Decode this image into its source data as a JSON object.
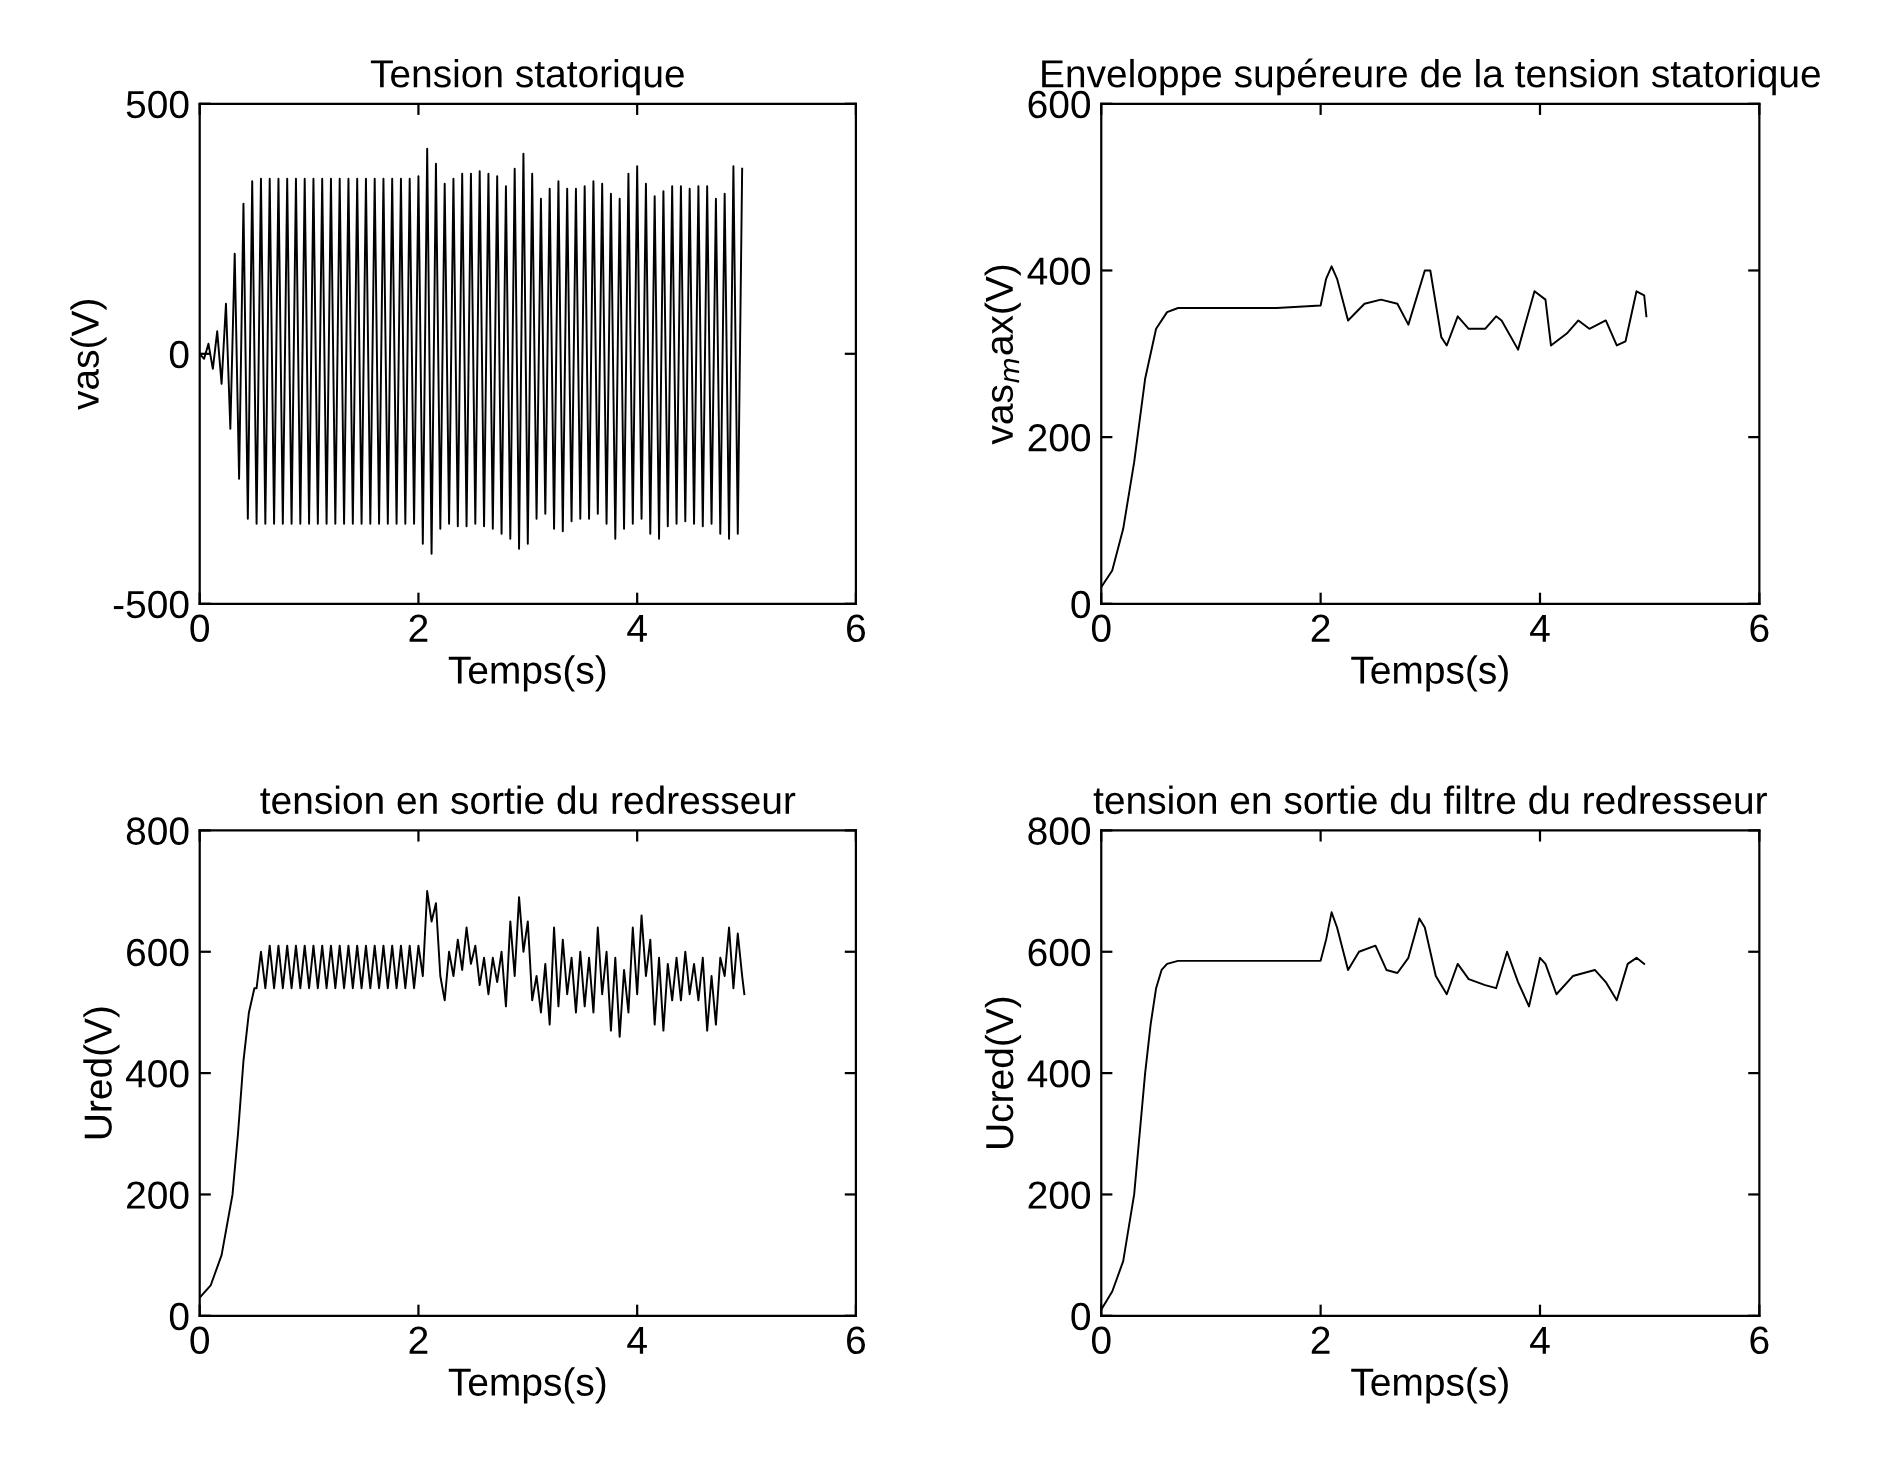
{
  "chart_data": [
    {
      "type": "line",
      "title": "Tension statorique",
      "xlabel": "Temps(s)",
      "ylabel": "vas(V)",
      "xlim": [
        0,
        6
      ],
      "xticks": [
        0,
        2,
        4,
        6
      ],
      "ylim": [
        -500,
        500
      ],
      "yticks": [
        -500,
        0,
        500
      ],
      "grid": false,
      "legend": false,
      "series": [
        {
          "color": "#000000",
          "x": [
            0,
            0.04,
            0.08,
            0.12,
            0.16,
            0.2,
            0.24,
            0.28,
            0.32,
            0.36,
            0.4,
            0.44,
            0.48,
            0.52,
            0.56,
            0.6,
            0.64,
            0.68,
            0.72,
            0.76,
            0.8,
            0.84,
            0.88,
            0.92,
            0.96,
            1.0,
            1.04,
            1.08,
            1.12,
            1.16,
            1.2,
            1.24,
            1.28,
            1.32,
            1.36,
            1.4,
            1.44,
            1.48,
            1.52,
            1.56,
            1.6,
            1.64,
            1.68,
            1.72,
            1.76,
            1.8,
            1.84,
            1.88,
            1.92,
            1.96,
            2.0,
            2.04,
            2.08,
            2.12,
            2.16,
            2.2,
            2.24,
            2.28,
            2.32,
            2.36,
            2.4,
            2.44,
            2.48,
            2.52,
            2.56,
            2.6,
            2.64,
            2.68,
            2.72,
            2.76,
            2.8,
            2.84,
            2.88,
            2.92,
            2.96,
            3.0,
            3.04,
            3.08,
            3.12,
            3.16,
            3.2,
            3.24,
            3.28,
            3.32,
            3.36,
            3.4,
            3.44,
            3.48,
            3.52,
            3.56,
            3.6,
            3.64,
            3.68,
            3.72,
            3.76,
            3.8,
            3.84,
            3.88,
            3.92,
            3.96,
            4.0,
            4.04,
            4.08,
            4.12,
            4.16,
            4.2,
            4.24,
            4.28,
            4.32,
            4.36,
            4.4,
            4.44,
            4.48,
            4.52,
            4.56,
            4.6,
            4.64,
            4.68,
            4.72,
            4.76,
            4.8,
            4.84,
            4.88,
            4.92,
            4.96
          ],
          "values": [
            0,
            -10,
            20,
            -30,
            45,
            -60,
            100,
            -150,
            200,
            -250,
            300,
            -330,
            345,
            -340,
            350,
            -340,
            350,
            -340,
            350,
            -340,
            350,
            -340,
            350,
            -340,
            350,
            -340,
            350,
            -340,
            350,
            -340,
            350,
            -340,
            350,
            -340,
            350,
            -340,
            350,
            -340,
            350,
            -340,
            350,
            -340,
            350,
            -340,
            350,
            -340,
            350,
            -340,
            350,
            -340,
            355,
            -380,
            410,
            -400,
            380,
            -350,
            340,
            -340,
            350,
            -345,
            360,
            -345,
            360,
            -340,
            365,
            -345,
            360,
            -350,
            355,
            -360,
            335,
            -370,
            370,
            -390,
            400,
            -380,
            360,
            -330,
            310,
            -320,
            330,
            -350,
            345,
            -355,
            330,
            -335,
            330,
            -330,
            335,
            -330,
            345,
            -320,
            340,
            -340,
            320,
            -370,
            310,
            -350,
            360,
            -340,
            375,
            -330,
            340,
            -360,
            315,
            -370,
            325,
            -345,
            335,
            -340,
            335,
            -335,
            330,
            -340,
            335,
            -345,
            335,
            -340,
            310,
            -360,
            320,
            -370,
            375,
            -360,
            370
          ]
        }
      ]
    },
    {
      "type": "line",
      "title": "Enveloppe supéreure de la tension statorique",
      "xlabel": "Temps(s)",
      "ylabel": "vas$_{m}$ax(V)",
      "xlim": [
        0,
        6
      ],
      "xticks": [
        0,
        2,
        4,
        6
      ],
      "ylim": [
        0,
        600
      ],
      "yticks": [
        0,
        200,
        400,
        600
      ],
      "grid": false,
      "legend": false,
      "series": [
        {
          "color": "#000000",
          "x": [
            0,
            0.1,
            0.2,
            0.3,
            0.4,
            0.5,
            0.6,
            0.7,
            1.6,
            2.0,
            2.05,
            2.1,
            2.15,
            2.25,
            2.4,
            2.55,
            2.7,
            2.8,
            2.95,
            3.0,
            3.1,
            3.15,
            3.25,
            3.35,
            3.5,
            3.6,
            3.65,
            3.8,
            3.95,
            4.05,
            4.1,
            4.25,
            4.35,
            4.45,
            4.6,
            4.7,
            4.78,
            4.88,
            4.95,
            4.97
          ],
          "values": [
            20,
            40,
            90,
            170,
            270,
            330,
            350,
            355,
            355,
            358,
            390,
            405,
            390,
            340,
            360,
            365,
            360,
            335,
            400,
            400,
            320,
            310,
            345,
            330,
            330,
            345,
            340,
            305,
            375,
            365,
            310,
            325,
            340,
            330,
            340,
            310,
            315,
            375,
            370,
            345
          ]
        }
      ]
    },
    {
      "type": "line",
      "title": "tension en sortie du redresseur",
      "xlabel": "Temps(s)",
      "ylabel": "Ured(V)",
      "xlim": [
        0,
        6
      ],
      "xticks": [
        0,
        2,
        4,
        6
      ],
      "ylim": [
        0,
        800
      ],
      "yticks": [
        0,
        200,
        400,
        600,
        800
      ],
      "grid": false,
      "legend": false,
      "series": [
        {
          "color": "#000000",
          "x": [
            0,
            0.1,
            0.2,
            0.3,
            0.35,
            0.4,
            0.45,
            0.5,
            0.52,
            0.56,
            0.6,
            0.64,
            0.68,
            0.72,
            0.76,
            0.8,
            0.84,
            0.88,
            0.92,
            0.96,
            1.0,
            1.04,
            1.08,
            1.12,
            1.16,
            1.2,
            1.24,
            1.28,
            1.32,
            1.36,
            1.4,
            1.44,
            1.48,
            1.52,
            1.56,
            1.6,
            1.64,
            1.68,
            1.72,
            1.76,
            1.8,
            1.84,
            1.88,
            1.92,
            1.96,
            2.0,
            2.04,
            2.08,
            2.12,
            2.16,
            2.2,
            2.24,
            2.28,
            2.32,
            2.36,
            2.4,
            2.44,
            2.48,
            2.52,
            2.56,
            2.6,
            2.64,
            2.68,
            2.72,
            2.76,
            2.8,
            2.84,
            2.88,
            2.92,
            2.96,
            3.0,
            3.04,
            3.08,
            3.12,
            3.16,
            3.2,
            3.24,
            3.28,
            3.32,
            3.36,
            3.4,
            3.44,
            3.48,
            3.52,
            3.56,
            3.6,
            3.64,
            3.68,
            3.72,
            3.76,
            3.8,
            3.84,
            3.88,
            3.92,
            3.96,
            4.0,
            4.04,
            4.08,
            4.12,
            4.16,
            4.2,
            4.24,
            4.28,
            4.32,
            4.36,
            4.4,
            4.44,
            4.48,
            4.52,
            4.56,
            4.6,
            4.64,
            4.68,
            4.72,
            4.76,
            4.8,
            4.84,
            4.88,
            4.92,
            4.96,
            4.98
          ],
          "values": [
            30,
            50,
            100,
            200,
            300,
            420,
            500,
            540,
            540,
            600,
            540,
            610,
            540,
            610,
            540,
            610,
            540,
            610,
            540,
            610,
            540,
            610,
            540,
            610,
            540,
            610,
            540,
            610,
            540,
            610,
            540,
            610,
            540,
            610,
            540,
            610,
            540,
            610,
            540,
            610,
            540,
            610,
            540,
            610,
            540,
            610,
            560,
            700,
            650,
            680,
            560,
            520,
            600,
            560,
            620,
            570,
            640,
            580,
            610,
            545,
            590,
            530,
            590,
            550,
            600,
            510,
            650,
            560,
            690,
            600,
            650,
            520,
            560,
            500,
            580,
            480,
            640,
            510,
            620,
            530,
            590,
            500,
            600,
            510,
            590,
            500,
            640,
            530,
            600,
            470,
            590,
            460,
            570,
            500,
            640,
            530,
            660,
            560,
            620,
            480,
            590,
            470,
            580,
            520,
            590,
            520,
            600,
            530,
            580,
            520,
            590,
            470,
            560,
            480,
            590,
            560,
            640,
            540,
            630,
            560,
            530
          ]
        }
      ]
    },
    {
      "type": "line",
      "title": "tension en sortie du filtre du redresseur",
      "xlabel": "Temps(s)",
      "ylabel": "Ucred(V)",
      "xlim": [
        0,
        6
      ],
      "xticks": [
        0,
        2,
        4,
        6
      ],
      "ylim": [
        0,
        800
      ],
      "yticks": [
        0,
        200,
        400,
        600,
        800
      ],
      "grid": false,
      "legend": false,
      "series": [
        {
          "color": "#000000",
          "x": [
            0,
            0.1,
            0.2,
            0.3,
            0.35,
            0.4,
            0.45,
            0.5,
            0.55,
            0.6,
            0.7,
            2.0,
            2.05,
            2.1,
            2.15,
            2.25,
            2.35,
            2.5,
            2.6,
            2.7,
            2.8,
            2.9,
            2.95,
            3.05,
            3.15,
            3.25,
            3.35,
            3.5,
            3.6,
            3.7,
            3.8,
            3.9,
            4.0,
            4.05,
            4.15,
            4.3,
            4.5,
            4.6,
            4.7,
            4.8,
            4.88,
            4.95
          ],
          "values": [
            10,
            40,
            90,
            200,
            300,
            400,
            480,
            540,
            570,
            580,
            585,
            585,
            620,
            665,
            640,
            570,
            600,
            610,
            570,
            565,
            590,
            655,
            640,
            560,
            530,
            580,
            555,
            545,
            540,
            600,
            550,
            510,
            590,
            580,
            530,
            560,
            570,
            550,
            520,
            580,
            590,
            580
          ]
        }
      ]
    }
  ]
}
